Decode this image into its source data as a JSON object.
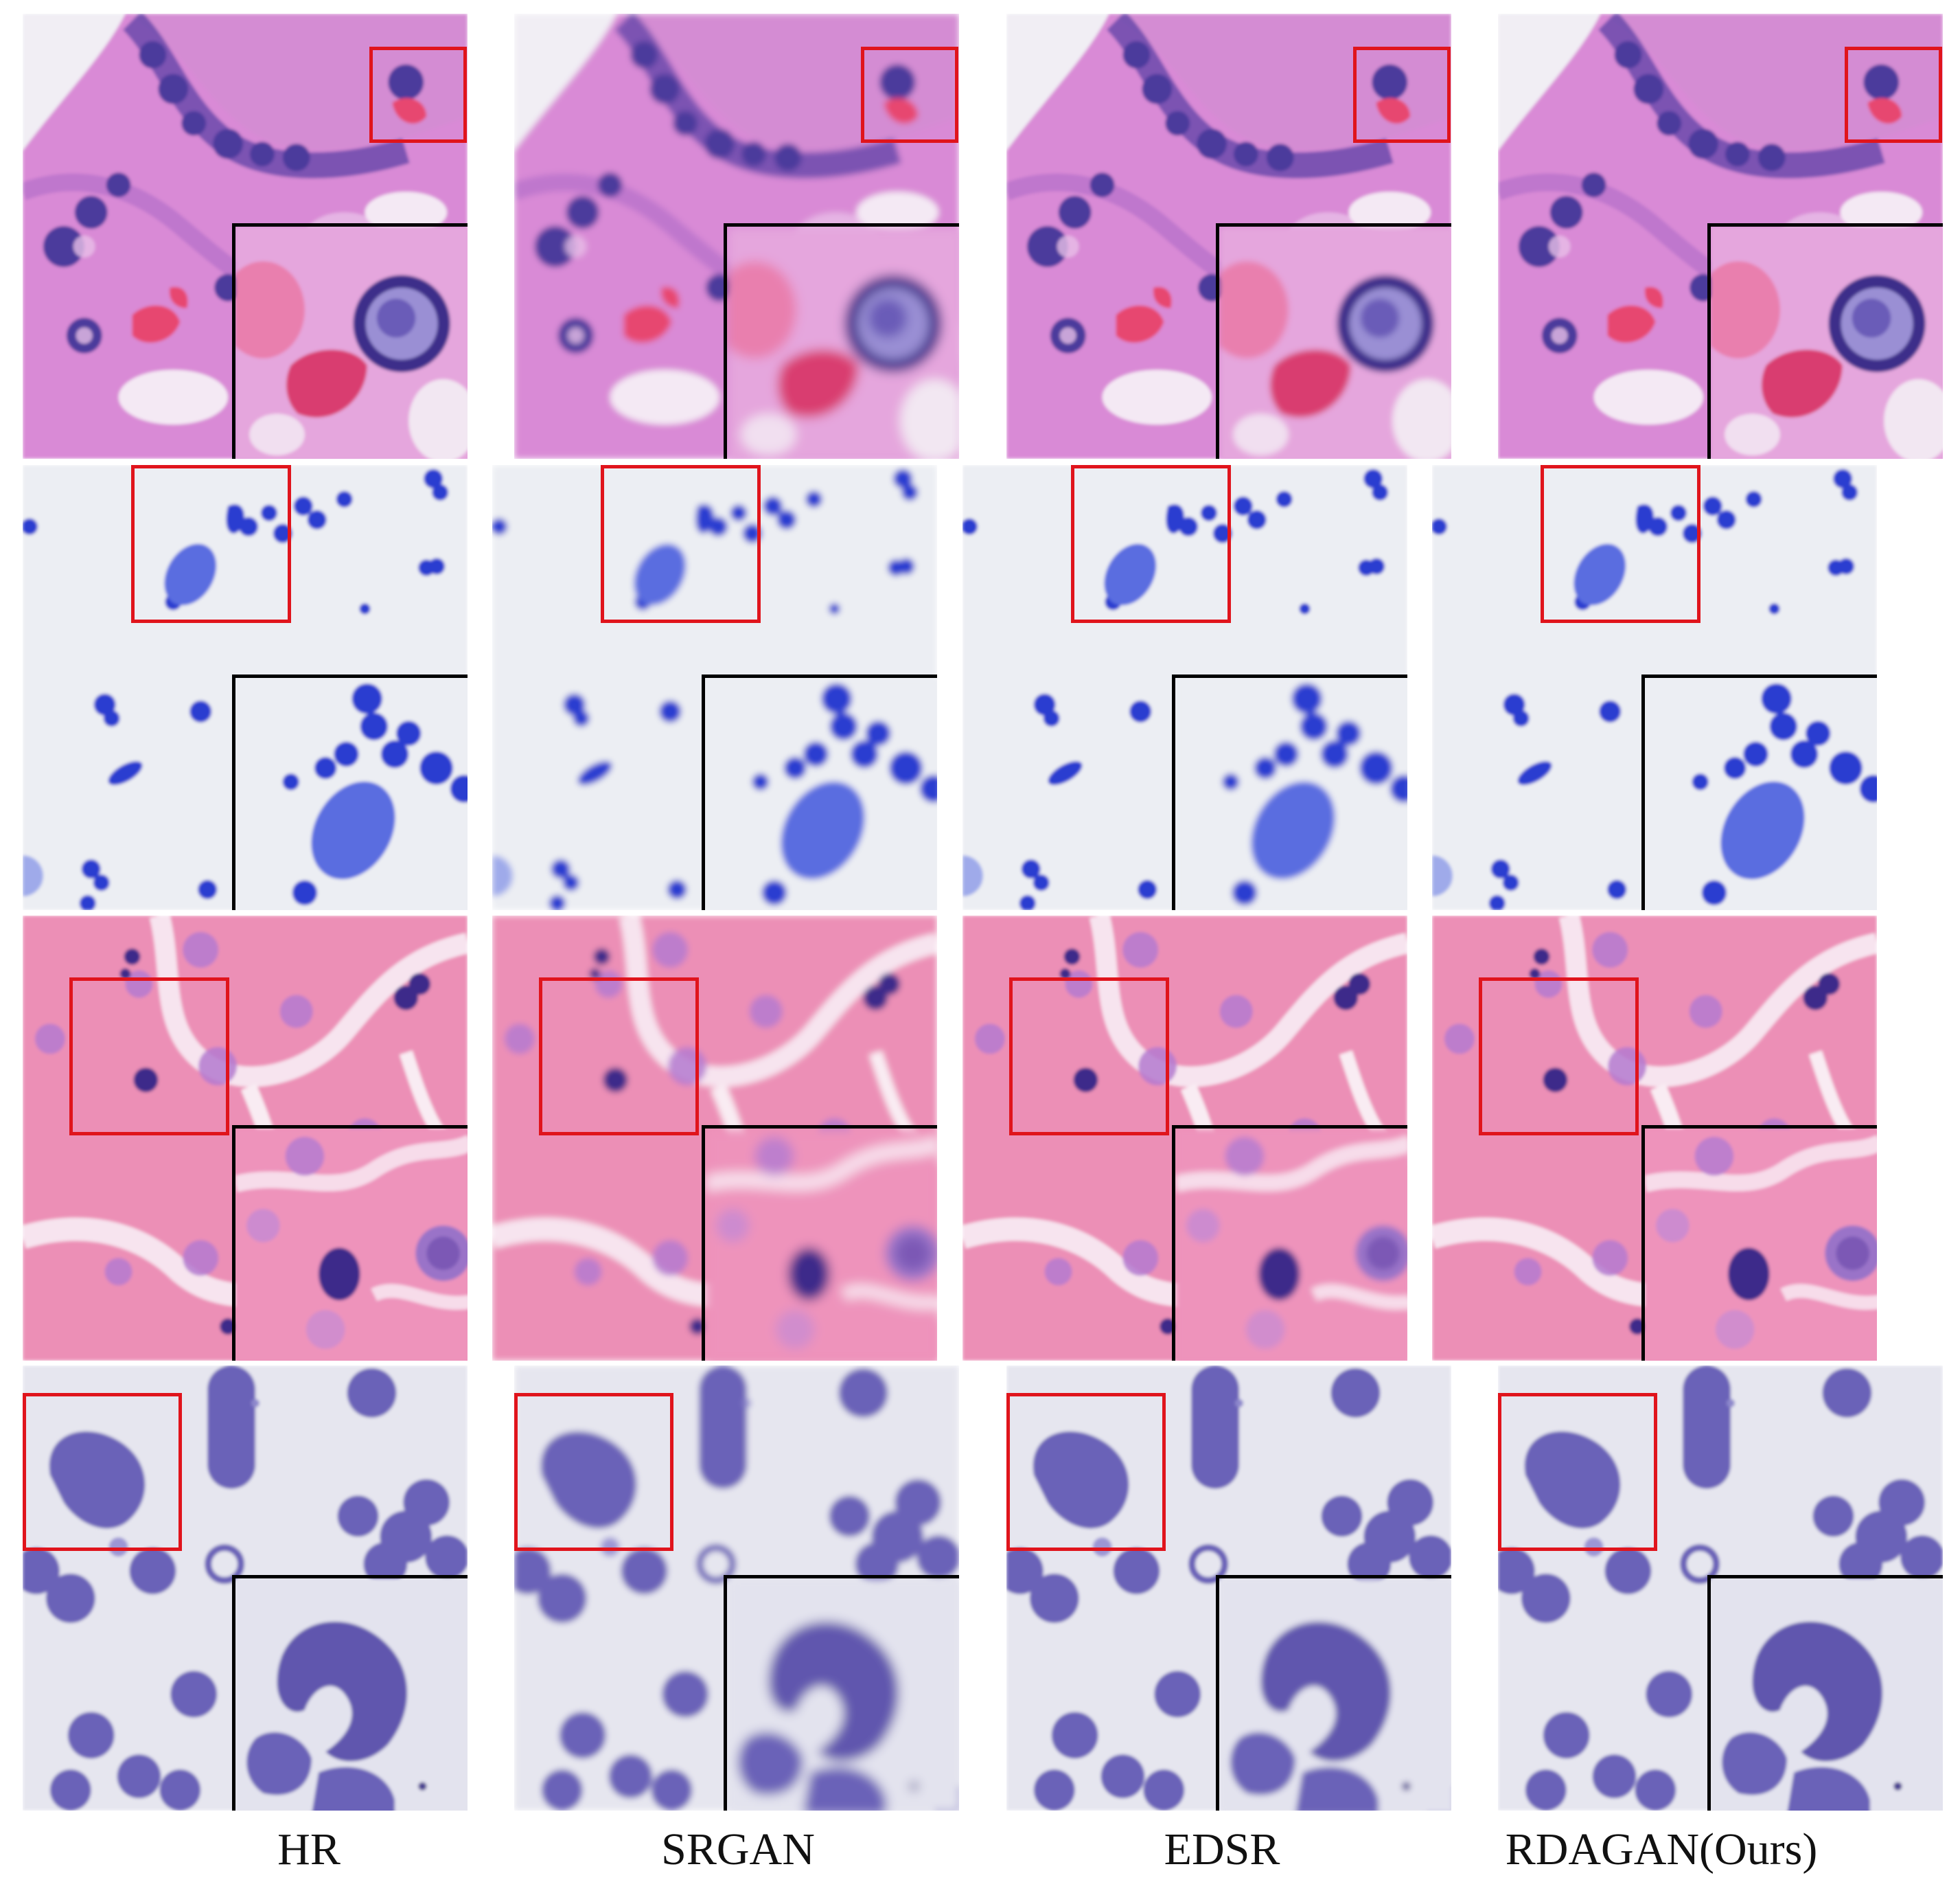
{
  "labels": {
    "col1": "HR",
    "col2": "SRGAN",
    "col3": "EDSR",
    "col4": "RDAGAN(Ours)"
  },
  "colors": {
    "zoom_box": "#e0141c",
    "inset_border": "#000000",
    "he_tissue_bg": "#d98ad6",
    "he_nucleus": "#4b3a9c",
    "blue_stain_bg": "#eceef3",
    "blue_stain_cell": "#2a3ed0",
    "pink_tissue_bg": "#ec8fb6",
    "pink_nucleus": "#3c2a8a",
    "smear_bg": "#e6e6ef",
    "smear_cell": "#6a62b8"
  }
}
